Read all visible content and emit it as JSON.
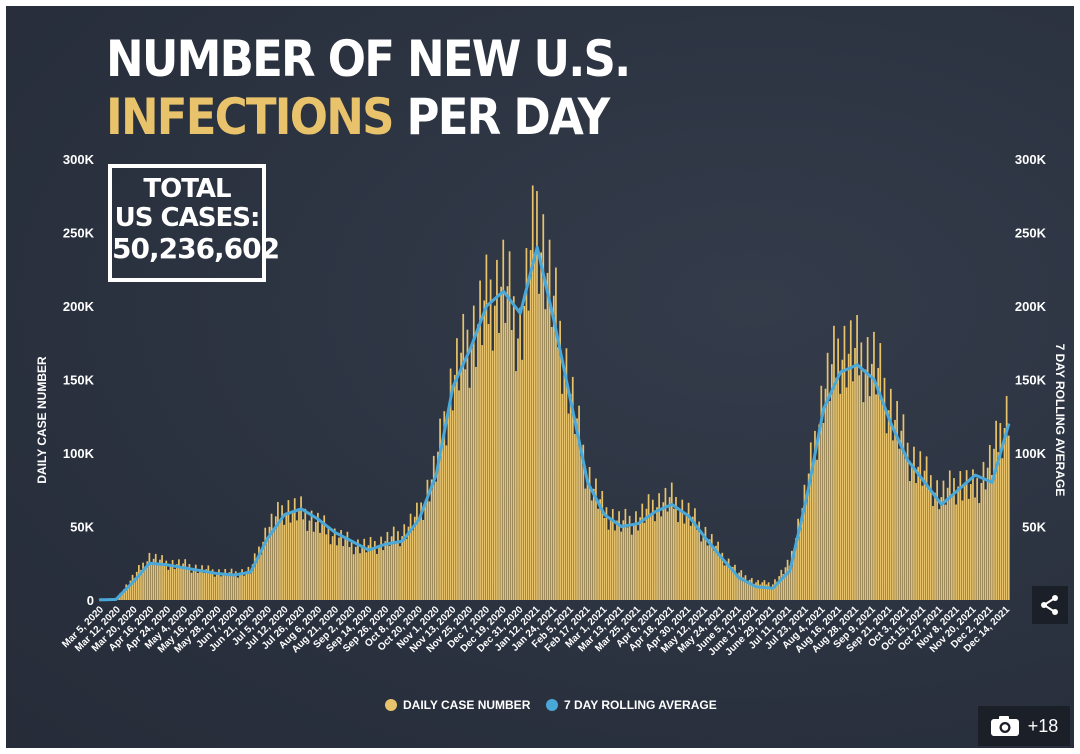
{
  "title": {
    "line1": "NUMBER OF NEW U.S.",
    "highlight": "INFECTIONS",
    "rest": "PER DAY"
  },
  "total_box": {
    "line1": "TOTAL",
    "line2": "US CASES:",
    "value": "50,236,602"
  },
  "colors": {
    "background": "#2b3240",
    "bar": "#e8c36b",
    "line": "#4aa8d8",
    "text": "#ffffff",
    "highlight": "#e8c36b"
  },
  "chart_data": {
    "type": "bar",
    "title": "NUMBER OF NEW U.S. INFECTIONS PER DAY",
    "ylabel": "DAILY CASE NUMBER",
    "y2label": "7 DAY ROLLING AVERAGE",
    "ylim": [
      0,
      300000
    ],
    "yticks": [
      "0",
      "50K",
      "100K",
      "150K",
      "200K",
      "250K",
      "300K"
    ],
    "y2ticks": [
      "50K",
      "100K",
      "150K",
      "200K",
      "250K",
      "300K"
    ],
    "categories": [
      "Mar 5, 2020",
      "Mar 12, 2020",
      "Mar 20, 2020",
      "Apr 16, 2020",
      "Apr 24, 2020",
      "May 4, 2020",
      "May 16, 2020",
      "May 28, 2020",
      "Jun 7, 2020",
      "Jun 21, 2020",
      "Jul 5, 2020",
      "Jul 12, 2020",
      "Jul 26, 2020",
      "Aug 6, 2020",
      "Aug 21, 2020",
      "Sep 2, 2020",
      "Sep 14, 2020",
      "Sep 26, 2020",
      "Oct 8, 2020",
      "Oct 20, 2020",
      "Nov 1, 2020",
      "Nov 13, 2020",
      "Nov 25, 2020",
      "Dec 7, 2020",
      "Dec 19, 2020",
      "Dec 31, 2020",
      "Jan 12, 2021",
      "Jan 24, 2021",
      "Feb 5, 2021",
      "Feb 17, 2021",
      "Mar 1, 2021",
      "Mar 13, 2021",
      "Mar 25, 2021",
      "Apr 6, 2021",
      "Apr 18, 2021",
      "Apr 30, 2021",
      "May 12, 2021",
      "May 24, 2021",
      "June 5, 2021",
      "June 17, 2021",
      "June 29, 2021",
      "Jul 11, 2021",
      "Jul 23, 2021",
      "Aug 4, 2021",
      "Aug 16, 2021",
      "Aug 28, 2021",
      "Sep 9, 2021",
      "Sep 21, 2021",
      "Oct 3, 2021",
      "Oct 15, 2021",
      "Oct 27, 2021",
      "Nov 8, 2021",
      "Nov 20, 2021",
      "Dec 2, 2021",
      "Dec 14, 2021"
    ],
    "series": [
      {
        "name": "DAILY CASE NUMBER",
        "type": "bar",
        "color": "#e8c36b",
        "values": [
          100,
          500,
          15000,
          29000,
          25000,
          24000,
          21000,
          19000,
          18000,
          20000,
          48000,
          62000,
          60000,
          52000,
          44000,
          38000,
          36000,
          40000,
          45000,
          58000,
          90000,
          150000,
          175000,
          200000,
          215000,
          180000,
          260000,
          200000,
          140000,
          85000,
          60000,
          52000,
          55000,
          65000,
          68000,
          58000,
          45000,
          30000,
          18000,
          12000,
          11000,
          25000,
          75000,
          140000,
          170000,
          165000,
          160000,
          130000,
          100000,
          85000,
          70000,
          80000,
          75000,
          95000,
          130000
        ]
      },
      {
        "name": "7 DAY ROLLING AVERAGE",
        "type": "line",
        "color": "#4aa8d8",
        "values": [
          100,
          400,
          12000,
          25000,
          24000,
          22000,
          20000,
          18000,
          17000,
          19000,
          42000,
          58000,
          62000,
          55000,
          46000,
          40000,
          34000,
          38000,
          40000,
          55000,
          85000,
          145000,
          170000,
          200000,
          210000,
          195000,
          240000,
          190000,
          135000,
          80000,
          58000,
          50000,
          52000,
          60000,
          65000,
          57000,
          42000,
          28000,
          15000,
          9000,
          8000,
          20000,
          70000,
          130000,
          155000,
          160000,
          150000,
          120000,
          95000,
          80000,
          65000,
          75000,
          85000,
          80000,
          120000
        ]
      }
    ],
    "legend": [
      "DAILY CASE NUMBER",
      "7 DAY ROLLING AVERAGE"
    ],
    "legend_position": "bottom-center"
  },
  "share_icon": "share-icon",
  "gallery": {
    "icon": "camera-icon",
    "count": "+18"
  }
}
